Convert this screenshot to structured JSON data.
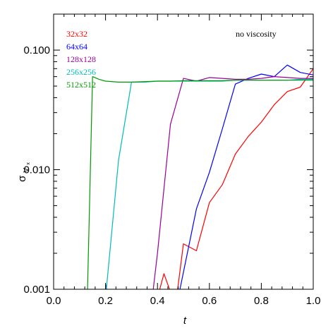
{
  "chart_data": {
    "type": "line",
    "title": "",
    "xlabel": "t",
    "ylabel_main": "σ",
    "ylabel_sub": "V",
    "ylabel_subsub": "x",
    "annotation": "no viscosity",
    "xlim": [
      0.0,
      1.0
    ],
    "ylim": [
      0.001,
      0.2
    ],
    "yscale": "log",
    "x_ticks": [
      0.0,
      0.2,
      0.4,
      0.6,
      0.8,
      1.0
    ],
    "x_tick_labels": [
      "0.0",
      "0.2",
      "0.4",
      "0.6",
      "0.8",
      "1.0"
    ],
    "y_ticks": [
      0.001,
      0.01,
      0.1
    ],
    "y_tick_labels": [
      "0.001",
      "0.010",
      "0.100"
    ],
    "legend_position": "top-left",
    "series": [
      {
        "name": "32x32",
        "color": "#ff0000",
        "x": [
          0.2,
          0.21,
          0.4,
          0.425,
          0.45,
          0.475,
          0.5,
          0.55,
          0.6,
          0.65,
          0.7,
          0.75,
          0.8,
          0.85,
          0.9,
          0.95,
          1.0
        ],
        "y": [
          0.00105,
          0.00095,
          0.00085,
          0.00135,
          0.00095,
          0.0009,
          0.0024,
          0.0021,
          0.0053,
          0.0075,
          0.0135,
          0.019,
          0.025,
          0.035,
          0.045,
          0.049,
          0.07
        ]
      },
      {
        "name": "64x64",
        "color": "#0000ff",
        "x": [
          0.2,
          0.205,
          0.48,
          0.55,
          0.6,
          0.65,
          0.7,
          0.75,
          0.8,
          0.85,
          0.9,
          0.95,
          1.0
        ],
        "y": [
          0.0011,
          0.00095,
          0.00085,
          0.0047,
          0.0095,
          0.022,
          0.052,
          0.058,
          0.063,
          0.06,
          0.075,
          0.065,
          0.062
        ]
      },
      {
        "name": "128x128",
        "color": "#990099",
        "x": [
          0.38,
          0.4,
          0.45,
          0.5,
          0.55,
          0.6,
          0.65,
          0.7,
          0.75,
          0.8,
          0.85,
          0.9,
          0.95,
          1.0
        ],
        "y": [
          0.00085,
          0.002,
          0.024,
          0.058,
          0.055,
          0.059,
          0.058,
          0.057,
          0.057,
          0.058,
          0.06,
          0.059,
          0.058,
          0.058
        ]
      },
      {
        "name": "256x256",
        "color": "#00bbbb",
        "x": [
          0.2,
          0.25,
          0.3,
          0.35,
          0.4,
          0.45,
          0.5,
          0.55,
          0.6,
          0.65,
          0.7,
          0.75,
          0.8,
          0.85,
          0.9,
          0.95,
          1.0
        ],
        "y": [
          0.00085,
          0.012,
          0.054,
          0.054,
          0.055,
          0.055,
          0.055,
          0.055,
          0.055,
          0.055,
          0.056,
          0.056,
          0.056,
          0.056,
          0.056,
          0.057,
          0.057
        ]
      },
      {
        "name": "512x512",
        "color": "#009900",
        "x": [
          0.13,
          0.15,
          0.175,
          0.2,
          0.25,
          0.3,
          0.35,
          0.4,
          0.45,
          0.5,
          0.55,
          0.6,
          0.65,
          0.7,
          0.75,
          0.8,
          0.85,
          0.9,
          0.95,
          1.0
        ],
        "y": [
          0.00085,
          0.06,
          0.057,
          0.055,
          0.054,
          0.054,
          0.0545,
          0.055,
          0.055,
          0.0555,
          0.0555,
          0.0555,
          0.0555,
          0.056,
          0.056,
          0.056,
          0.056,
          0.056,
          0.056,
          0.056
        ]
      }
    ]
  }
}
